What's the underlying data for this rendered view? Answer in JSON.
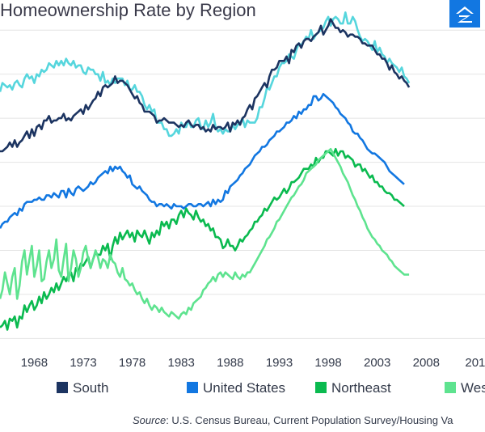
{
  "title": "Homeownership Rate by Region",
  "logo": {
    "icon": "zillow-house-icon",
    "color": "#1277e1"
  },
  "source": {
    "label": "Source",
    "text": ": U.S. Census Bureau, Current Population Survey/Housing Va"
  },
  "colors": {
    "South": "#1c3461",
    "United States": "#1277e1",
    "Northeast": "#0aba4f",
    "West": "#5ee38f",
    "Midwest": "#56d6dd",
    "grid": "#e4e4e4"
  },
  "chart_data": {
    "type": "line",
    "title": "Homeownership Rate by Region",
    "x_ticks": [
      "1968",
      "1973",
      "1978",
      "1983",
      "1988",
      "1993",
      "1998",
      "2003",
      "2008",
      "201"
    ],
    "xlim": [
      1965.0,
      2014.5
    ],
    "ylim": [
      57.5,
      73.0
    ],
    "grid": "horizontal",
    "legend_placement": "bottom",
    "legend": [
      "South",
      "United States",
      "Northeast",
      "West"
    ],
    "x_quarters": {
      "start": 1965.0,
      "step": 0.25
    },
    "series": [
      {
        "name": "",
        "color": "#56d6dd",
        "values": [
          69.2,
          69.6,
          69.5,
          69.4,
          69.5,
          69.3,
          69.6,
          69.7,
          69.5,
          69.4,
          69.8,
          70.0,
          69.8,
          69.9,
          69.6,
          70.0,
          69.9,
          70.2,
          70.1,
          70.2,
          70.5,
          70.4,
          70.3,
          70.6,
          70.4,
          70.6,
          70.4,
          70.7,
          70.5,
          70.4,
          70.6,
          70.3,
          70.4,
          70.4,
          70.1,
          70.0,
          70.3,
          70.2,
          70.2,
          70.0,
          70.0,
          69.7,
          70.1,
          69.6,
          69.7,
          69.5,
          69.8,
          69.6,
          69.8,
          69.8,
          69.8,
          69.5,
          69.7,
          69.3,
          69.3,
          69.5,
          69.2,
          69.2,
          69.0,
          68.6,
          68.4,
          68.6,
          68.3,
          68.4,
          67.8,
          67.8,
          67.8,
          67.5,
          67.5,
          67.2,
          67.2,
          67.3,
          67.5,
          67.3,
          67.8,
          67.6,
          67.6,
          67.9,
          67.6,
          67.6,
          67.9,
          68.0,
          67.6,
          67.5,
          67.9,
          67.6,
          67.8,
          68.2,
          67.6,
          67.4,
          67.5,
          67.3,
          67.5,
          67.4,
          67.4,
          67.7,
          67.5,
          67.7,
          67.8,
          68.0,
          67.6,
          67.9,
          67.8,
          67.8,
          67.8,
          68.0,
          68.5,
          68.5,
          68.9,
          69.4,
          69.3,
          69.6,
          69.9,
          69.9,
          70.3,
          70.5,
          70.5,
          70.6,
          70.9,
          70.8,
          70.7,
          71.1,
          71.4,
          71.3,
          71.5,
          71.7,
          71.6,
          72.0,
          71.6,
          71.8,
          71.9,
          72.0,
          72.1,
          72.4,
          72.6,
          72.2,
          72.5,
          72.6,
          72.5,
          72.3,
          72.3,
          72.8,
          72.3,
          72.3,
          72.6,
          72.4,
          72.0,
          71.7,
          71.5,
          71.6,
          71.5,
          71.3,
          71.1,
          71.5,
          71.0,
          71.2,
          70.9,
          70.8,
          70.5,
          70.7,
          70.5,
          70.4,
          70.3,
          70.1,
          70.3,
          69.9,
          69.8,
          69.6
        ]
      },
      {
        "name": "South",
        "color": "#1c3461",
        "values": [
          66.5,
          66.5,
          66.6,
          66.7,
          66.9,
          66.7,
          67.0,
          66.7,
          66.9,
          67.0,
          67.2,
          67.4,
          67.1,
          67.5,
          67.2,
          67.6,
          67.7,
          67.5,
          67.9,
          67.9,
          68.1,
          67.8,
          67.9,
          67.9,
          68.0,
          68.0,
          68.2,
          67.9,
          68.0,
          67.9,
          68.1,
          68.2,
          68.3,
          68.4,
          68.2,
          68.6,
          68.4,
          68.6,
          68.8,
          68.9,
          69.2,
          69.0,
          69.4,
          69.5,
          69.4,
          69.5,
          69.6,
          69.9,
          69.6,
          69.7,
          69.7,
          69.6,
          69.5,
          69.3,
          69.1,
          68.9,
          69.0,
          68.7,
          68.6,
          68.3,
          68.3,
          68.3,
          68.2,
          68.1,
          67.8,
          67.9,
          67.9,
          68.0,
          67.9,
          67.8,
          67.8,
          67.8,
          67.7,
          67.6,
          67.7,
          67.6,
          67.8,
          67.9,
          67.7,
          67.6,
          67.7,
          67.7,
          67.5,
          67.6,
          67.4,
          67.5,
          67.4,
          67.7,
          67.5,
          67.6,
          67.6,
          67.5,
          67.6,
          67.8,
          67.4,
          67.8,
          67.7,
          67.9,
          67.7,
          68.0,
          68.1,
          68.4,
          68.6,
          68.4,
          68.9,
          69.0,
          69.2,
          69.4,
          69.6,
          69.4,
          69.9,
          70.2,
          70.2,
          70.3,
          70.6,
          70.6,
          70.6,
          70.8,
          70.5,
          71.1,
          71.0,
          71.3,
          71.4,
          71.2,
          71.5,
          71.6,
          71.6,
          71.5,
          71.7,
          71.8,
          71.9,
          72.2,
          71.8,
          72.0,
          72.2,
          72.5,
          72.3,
          72.1,
          72.1,
          71.9,
          72.0,
          71.9,
          71.7,
          71.8,
          71.8,
          71.7,
          71.7,
          71.6,
          71.4,
          71.4,
          71.3,
          71.3,
          71.3,
          71.1,
          70.9,
          70.9,
          70.7,
          70.7,
          70.5,
          70.2,
          70.4,
          70.1,
          70.0,
          69.8,
          69.9,
          69.7,
          69.6,
          69.4
        ]
      },
      {
        "name": "United States",
        "color": "#1277e1",
        "values": [
          63.0,
          63.2,
          63.3,
          63.3,
          63.5,
          63.6,
          63.7,
          63.6,
          63.9,
          63.8,
          64.1,
          64.2,
          64.2,
          64.2,
          64.3,
          64.3,
          64.4,
          64.3,
          64.3,
          64.5,
          64.5,
          64.4,
          64.6,
          64.5,
          64.4,
          64.7,
          64.7,
          64.4,
          64.8,
          64.6,
          64.5,
          64.8,
          64.9,
          64.8,
          64.7,
          64.8,
          64.9,
          65.1,
          65.0,
          65.1,
          65.3,
          65.4,
          65.5,
          65.6,
          65.5,
          65.8,
          65.6,
          65.8,
          65.7,
          65.8,
          65.6,
          65.5,
          65.3,
          65.4,
          65.0,
          64.9,
          64.8,
          64.9,
          64.7,
          64.6,
          64.5,
          64.3,
          64.2,
          64.2,
          64.0,
          64.1,
          64.1,
          64.0,
          64.1,
          64.0,
          63.9,
          64.1,
          64.0,
          64.0,
          64.0,
          63.9,
          64.0,
          64.1,
          64.1,
          64.0,
          64.0,
          64.1,
          64.1,
          64.0,
          64.1,
          64.2,
          64.0,
          64.3,
          64.1,
          64.3,
          64.2,
          64.3,
          64.7,
          64.6,
          64.9,
          65.0,
          65.1,
          65.2,
          65.4,
          65.5,
          65.7,
          65.8,
          65.9,
          66.1,
          66.3,
          66.4,
          66.5,
          66.7,
          66.7,
          66.8,
          67.0,
          67.1,
          67.2,
          67.4,
          67.4,
          67.5,
          67.6,
          67.8,
          67.8,
          67.9,
          68.1,
          68.0,
          68.3,
          68.2,
          68.4,
          68.4,
          68.6,
          68.6,
          69.0,
          69.0,
          68.8,
          68.9,
          69.1,
          69.0,
          68.9,
          68.8,
          68.7,
          68.5,
          68.4,
          68.2,
          68.1,
          68.0,
          67.8,
          67.7,
          67.4,
          67.3,
          67.3,
          67.1,
          67.0,
          66.8,
          66.6,
          66.5,
          66.4,
          66.4,
          66.3,
          66.2,
          66.1,
          66.0,
          65.8,
          65.6,
          65.5,
          65.4,
          65.3,
          65.2,
          65.1,
          65.0
        ]
      },
      {
        "name": "Northeast",
        "color": "#0aba4f",
        "values": [
          58.5,
          58.6,
          58.8,
          58.4,
          58.9,
          58.8,
          59.0,
          58.5,
          59.0,
          58.9,
          59.5,
          59.2,
          59.5,
          59.7,
          59.3,
          59.5,
          59.9,
          59.6,
          60.1,
          59.8,
          60.0,
          60.3,
          60.1,
          60.5,
          60.2,
          60.5,
          60.8,
          60.6,
          60.9,
          61.0,
          60.6,
          61.2,
          61.0,
          61.4,
          61.3,
          61.5,
          61.7,
          61.2,
          61.6,
          61.9,
          61.8,
          61.8,
          62.2,
          62.0,
          62.3,
          61.6,
          62.2,
          62.6,
          62.3,
          62.8,
          62.5,
          62.7,
          62.9,
          62.6,
          62.8,
          62.4,
          62.9,
          62.7,
          62.6,
          62.9,
          62.6,
          62.3,
          62.8,
          62.6,
          62.9,
          62.7,
          63.3,
          63.1,
          63.3,
          63.0,
          63.4,
          63.4,
          63.2,
          63.6,
          63.8,
          63.5,
          63.9,
          63.7,
          63.6,
          63.4,
          63.8,
          63.5,
          63.3,
          63.4,
          63.1,
          63.2,
          62.9,
          63.0,
          62.6,
          62.6,
          62.5,
          62.1,
          62.2,
          62.5,
          62.2,
          62.2,
          62.0,
          62.2,
          62.5,
          62.4,
          62.6,
          62.7,
          62.9,
          63.0,
          63.3,
          63.3,
          63.5,
          63.6,
          63.9,
          63.8,
          64.0,
          64.2,
          64.4,
          64.3,
          64.4,
          64.6,
          64.8,
          64.6,
          64.8,
          65.1,
          65.1,
          65.2,
          65.3,
          65.5,
          65.7,
          65.7,
          65.7,
          65.9,
          65.8,
          66.2,
          66.0,
          66.2,
          66.2,
          66.5,
          66.5,
          66.4,
          66.3,
          66.6,
          66.3,
          66.5,
          66.5,
          66.2,
          66.3,
          66.2,
          66.1,
          65.8,
          65.9,
          65.9,
          65.6,
          65.7,
          65.5,
          65.3,
          65.4,
          65.1,
          65.1,
          64.9,
          64.9,
          64.7,
          64.6,
          64.6,
          64.5,
          64.3,
          64.3,
          64.2,
          64.1,
          64.0
        ]
      },
      {
        "name": "West",
        "color": "#5ee38f",
        "values": [
          59.8,
          60.2,
          61.0,
          60.5,
          60.0,
          60.8,
          61.2,
          59.8,
          60.4,
          61.5,
          62.0,
          60.9,
          61.6,
          62.2,
          60.8,
          61.3,
          62.0,
          60.6,
          60.7,
          61.5,
          62.0,
          61.2,
          61.6,
          62.5,
          61.1,
          60.8,
          61.6,
          62.3,
          60.6,
          61.2,
          62.0,
          61.6,
          60.8,
          61.2,
          61.9,
          62.2,
          61.6,
          61.2,
          61.6,
          62.0,
          61.7,
          61.2,
          61.6,
          61.5,
          61.2,
          61.8,
          61.5,
          61.4,
          61.0,
          60.8,
          61.2,
          60.7,
          60.6,
          60.4,
          60.5,
          60.2,
          60.0,
          60.1,
          59.8,
          59.6,
          59.8,
          59.5,
          59.3,
          59.5,
          59.4,
          59.2,
          59.4,
          59.2,
          59.1,
          59.0,
          59.2,
          59.1,
          59.0,
          58.9,
          59.1,
          59.2,
          59.1,
          59.4,
          59.3,
          59.6,
          59.7,
          59.8,
          59.9,
          60.2,
          60.3,
          60.5,
          60.6,
          60.8,
          60.6,
          60.9,
          61.0,
          60.8,
          61.0,
          60.9,
          60.8,
          60.7,
          61.0,
          60.8,
          60.7,
          60.9,
          60.8,
          61.0,
          61.0,
          61.2,
          61.4,
          61.6,
          61.8,
          62.0,
          62.2,
          62.5,
          62.6,
          62.8,
          63.0,
          63.3,
          63.4,
          63.6,
          63.8,
          64.0,
          64.2,
          64.4,
          64.5,
          64.7,
          64.9,
          65.0,
          65.2,
          65.5,
          65.6,
          65.7,
          65.8,
          65.9,
          66.1,
          66.2,
          66.3,
          66.4,
          66.5,
          66.6,
          66.4,
          66.2,
          66.0,
          65.8,
          65.5,
          65.3,
          65.1,
          64.8,
          64.5,
          64.3,
          64.0,
          63.8,
          63.5,
          63.3,
          63.0,
          62.8,
          62.6,
          62.5,
          62.3,
          62.2,
          62.0,
          61.9,
          61.8,
          61.6,
          61.5,
          61.3,
          61.2,
          61.1,
          61.0,
          60.9,
          60.9,
          60.9
        ]
      }
    ]
  }
}
